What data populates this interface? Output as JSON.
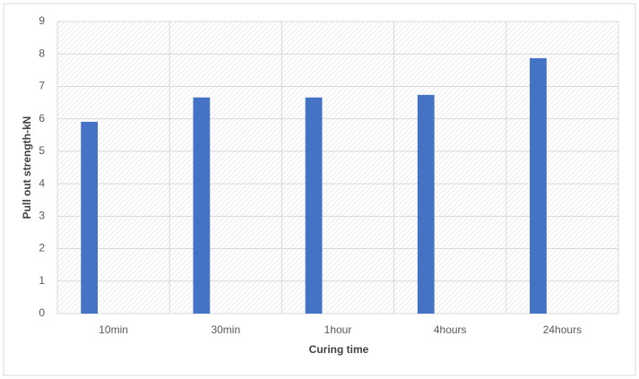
{
  "chart_data": {
    "type": "bar",
    "categories": [
      "10min",
      "30min",
      "1hour",
      "4hours",
      "24hours"
    ],
    "values": [
      5.91,
      6.66,
      6.66,
      6.74,
      7.87
    ],
    "color": "#4472c4",
    "x_label": "Curing time",
    "y_label": "Pull out strength-kN",
    "ylim": [
      0,
      9
    ],
    "yticks": [
      0,
      1,
      2,
      3,
      4,
      5,
      6,
      7,
      8,
      9
    ],
    "grid": true
  }
}
